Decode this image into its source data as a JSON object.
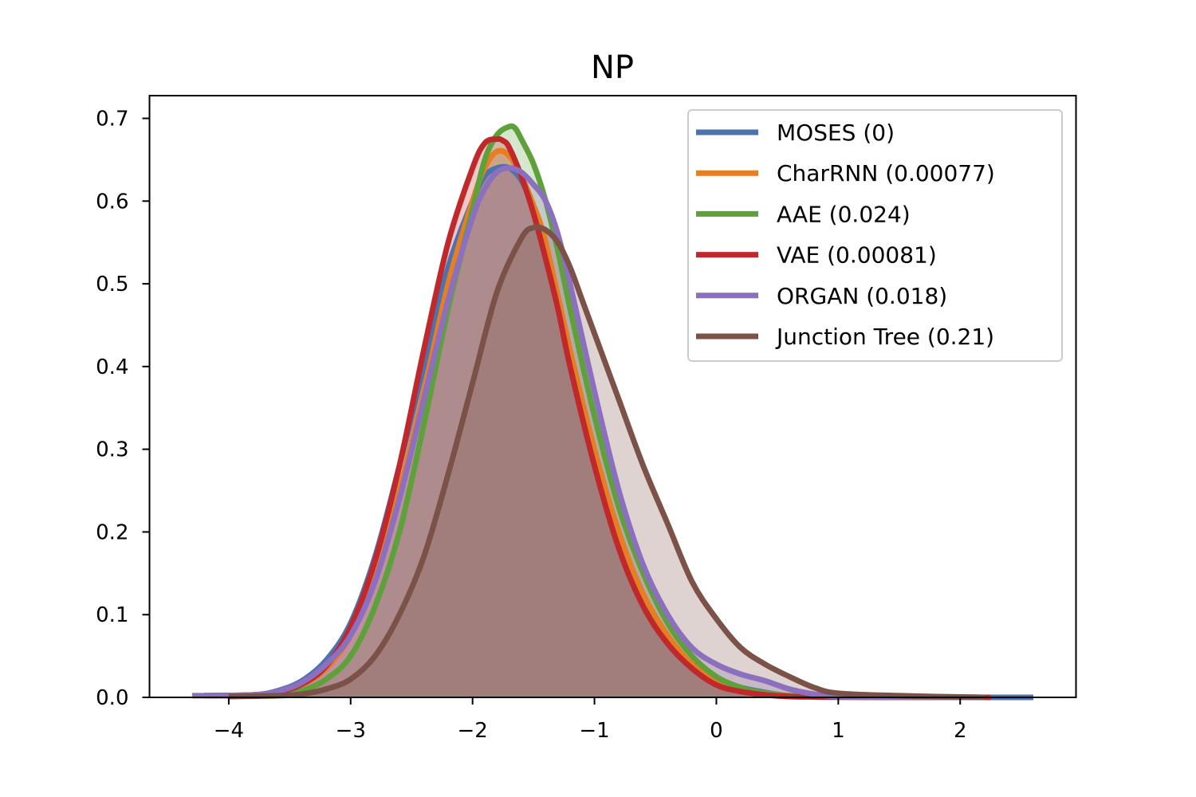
{
  "chart_data": {
    "type": "area",
    "title": "NP",
    "xlabel": "",
    "ylabel": "",
    "xlim": [
      -4.65,
      2.95
    ],
    "ylim": [
      0.0,
      0.7275
    ],
    "xticks": [
      -4,
      -3,
      -2,
      -1,
      0,
      1,
      2
    ],
    "xtick_labels": [
      "−4",
      "−3",
      "−2",
      "−1",
      "0",
      "1",
      "2"
    ],
    "yticks": [
      0.0,
      0.1,
      0.2,
      0.3,
      0.4,
      0.5,
      0.6,
      0.7
    ],
    "ytick_labels": [
      "0.0",
      "0.1",
      "0.2",
      "0.3",
      "0.4",
      "0.5",
      "0.6",
      "0.7"
    ],
    "legend_position": "top-right",
    "series": [
      {
        "name": "MOSES (0)",
        "color": "#4c72b0",
        "x": [
          -4.2,
          -3.8,
          -3.6,
          -3.4,
          -3.2,
          -3.0,
          -2.8,
          -2.6,
          -2.4,
          -2.2,
          -2.0,
          -1.9,
          -1.8,
          -1.7,
          -1.6,
          -1.5,
          -1.4,
          -1.2,
          -1.0,
          -0.8,
          -0.6,
          -0.4,
          -0.2,
          0.0,
          0.2,
          0.4,
          0.6,
          0.8,
          1.0,
          1.5,
          2.0,
          2.6
        ],
        "y": [
          0.002,
          0.003,
          0.008,
          0.02,
          0.045,
          0.09,
          0.17,
          0.28,
          0.4,
          0.52,
          0.6,
          0.63,
          0.64,
          0.64,
          0.625,
          0.59,
          0.54,
          0.41,
          0.29,
          0.19,
          0.12,
          0.07,
          0.04,
          0.022,
          0.012,
          0.006,
          0.002,
          0.001,
          0.0005,
          0.0002,
          0.0001,
          0.0
        ]
      },
      {
        "name": "CharRNN (0.00077)",
        "color": "#e67e22",
        "x": [
          -4.0,
          -3.6,
          -3.4,
          -3.2,
          -3.0,
          -2.8,
          -2.6,
          -2.4,
          -2.2,
          -2.0,
          -1.9,
          -1.8,
          -1.7,
          -1.6,
          -1.5,
          -1.4,
          -1.2,
          -1.0,
          -0.8,
          -0.6,
          -0.4,
          -0.2,
          0.0,
          0.2,
          0.4,
          0.6,
          0.8,
          1.0,
          1.5,
          2.2
        ],
        "y": [
          0.001,
          0.005,
          0.015,
          0.035,
          0.075,
          0.145,
          0.25,
          0.37,
          0.5,
          0.6,
          0.64,
          0.66,
          0.655,
          0.63,
          0.595,
          0.55,
          0.42,
          0.3,
          0.2,
          0.125,
          0.075,
          0.04,
          0.02,
          0.01,
          0.005,
          0.002,
          0.001,
          0.0005,
          0.0002,
          0.0
        ]
      },
      {
        "name": "AAE (0.024)",
        "color": "#5ea03a",
        "x": [
          -4.0,
          -3.6,
          -3.4,
          -3.2,
          -3.0,
          -2.8,
          -2.6,
          -2.4,
          -2.2,
          -2.0,
          -1.9,
          -1.8,
          -1.7,
          -1.65,
          -1.6,
          -1.5,
          -1.4,
          -1.3,
          -1.2,
          -1.0,
          -0.8,
          -0.6,
          -0.4,
          -0.2,
          0.0,
          0.2,
          0.4,
          0.6,
          0.8,
          1.0,
          1.5,
          2.2
        ],
        "y": [
          0.001,
          0.003,
          0.008,
          0.022,
          0.05,
          0.11,
          0.2,
          0.33,
          0.47,
          0.59,
          0.65,
          0.68,
          0.69,
          0.688,
          0.675,
          0.645,
          0.6,
          0.54,
          0.47,
          0.34,
          0.23,
          0.15,
          0.09,
          0.05,
          0.025,
          0.012,
          0.005,
          0.002,
          0.001,
          0.0005,
          0.0002,
          0.0
        ]
      },
      {
        "name": "VAE (0.00081)",
        "color": "#c0282b",
        "x": [
          -4.2,
          -3.8,
          -3.6,
          -3.4,
          -3.2,
          -3.0,
          -2.8,
          -2.6,
          -2.4,
          -2.2,
          -2.0,
          -1.9,
          -1.8,
          -1.75,
          -1.7,
          -1.6,
          -1.5,
          -1.4,
          -1.3,
          -1.2,
          -1.0,
          -0.8,
          -0.6,
          -0.4,
          -0.2,
          0.0,
          0.2,
          0.4,
          0.6,
          0.8,
          1.0,
          1.5,
          2.25
        ],
        "y": [
          0.002,
          0.003,
          0.006,
          0.016,
          0.038,
          0.085,
          0.165,
          0.28,
          0.42,
          0.55,
          0.64,
          0.67,
          0.675,
          0.673,
          0.665,
          0.63,
          0.585,
          0.53,
          0.47,
          0.4,
          0.28,
          0.18,
          0.11,
          0.065,
          0.035,
          0.015,
          0.007,
          0.003,
          0.001,
          0.0005,
          0.0002,
          0.0001,
          0.0
        ]
      },
      {
        "name": "ORGAN (0.018)",
        "color": "#8c6fbe",
        "x": [
          -4.3,
          -3.8,
          -3.6,
          -3.4,
          -3.2,
          -3.0,
          -2.8,
          -2.6,
          -2.4,
          -2.2,
          -2.0,
          -1.9,
          -1.8,
          -1.7,
          -1.6,
          -1.5,
          -1.4,
          -1.3,
          -1.2,
          -1.0,
          -0.8,
          -0.6,
          -0.4,
          -0.2,
          0.0,
          0.2,
          0.4,
          0.6,
          0.8,
          1.0,
          1.5,
          2.2
        ],
        "y": [
          0.002,
          0.003,
          0.007,
          0.018,
          0.04,
          0.075,
          0.14,
          0.24,
          0.36,
          0.48,
          0.58,
          0.615,
          0.635,
          0.64,
          0.635,
          0.62,
          0.6,
          0.56,
          0.5,
          0.37,
          0.25,
          0.16,
          0.1,
          0.06,
          0.04,
          0.028,
          0.02,
          0.01,
          0.004,
          0.001,
          0.0003,
          0.0
        ]
      },
      {
        "name": "Junction Tree (0.21)",
        "color": "#7b5148",
        "x": [
          -4.0,
          -3.6,
          -3.4,
          -3.2,
          -3.0,
          -2.8,
          -2.6,
          -2.4,
          -2.2,
          -2.0,
          -1.8,
          -1.6,
          -1.5,
          -1.4,
          -1.3,
          -1.2,
          -1.1,
          -1.0,
          -0.8,
          -0.6,
          -0.4,
          -0.2,
          0.0,
          0.2,
          0.4,
          0.6,
          0.8,
          1.0,
          1.5,
          2.2
        ],
        "y": [
          0.001,
          0.002,
          0.004,
          0.01,
          0.022,
          0.05,
          0.1,
          0.17,
          0.27,
          0.38,
          0.49,
          0.555,
          0.568,
          0.565,
          0.55,
          0.52,
          0.48,
          0.44,
          0.36,
          0.28,
          0.21,
          0.14,
          0.095,
          0.06,
          0.04,
          0.025,
          0.012,
          0.005,
          0.002,
          0.0
        ]
      }
    ]
  }
}
